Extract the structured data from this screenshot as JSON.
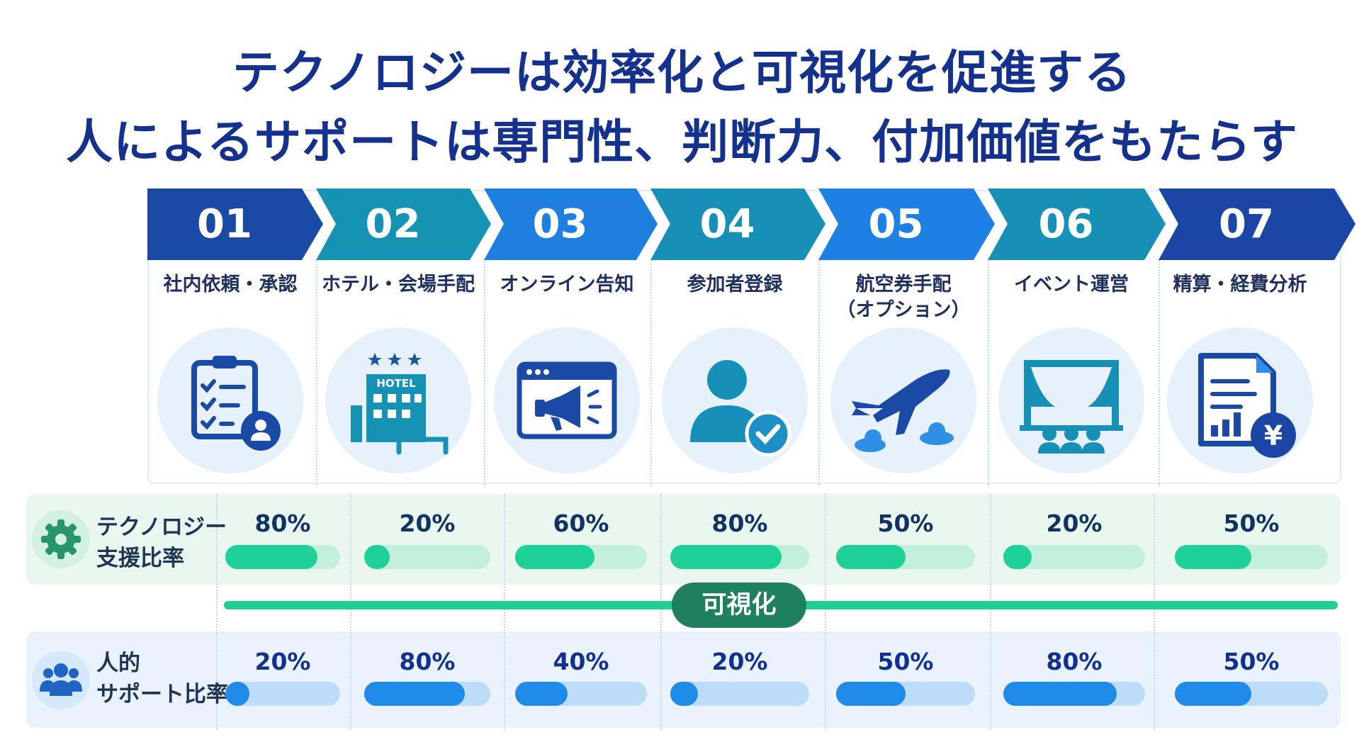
{
  "title": {
    "line1": "テクノロジーは効率化と可視化を促進する",
    "line2": "人によるサポートは専門性、判断力、付加価値をもたらす"
  },
  "steps": [
    {
      "num": "01",
      "label": "社内依頼・承認",
      "icon": "clipboard-checklist-person-icon",
      "color": "#1b4aa6"
    },
    {
      "num": "02",
      "label": "ホテル・会場手配",
      "icon": "hotel-building-bed-icon",
      "color": "#1693b4",
      "icon_text": "HOTEL"
    },
    {
      "num": "03",
      "label": "オンライン告知",
      "icon": "browser-megaphone-icon",
      "color": "#1e7fe0"
    },
    {
      "num": "04",
      "label": "参加者登録",
      "icon": "user-check-icon",
      "color": "#1690b6"
    },
    {
      "num": "05",
      "label": "航空券手配\n（オプション）",
      "icon": "airplane-clouds-icon",
      "color": "#1e80e3"
    },
    {
      "num": "06",
      "label": "イベント運営",
      "icon": "stage-audience-icon",
      "color": "#1690b4"
    },
    {
      "num": "07",
      "label": "精算・経費分析",
      "icon": "report-yen-icon",
      "color": "#1b46a6",
      "icon_text": "¥"
    }
  ],
  "technology": {
    "label": "テクノロジー\n支援比率",
    "icon": "gear-icon",
    "values": [
      80,
      20,
      60,
      80,
      50,
      20,
      50
    ],
    "labels": [
      "80%",
      "20%",
      "60%",
      "80%",
      "50%",
      "20%",
      "50%"
    ]
  },
  "visualization_label": "可視化",
  "human": {
    "label": "人的\nサポート比率",
    "icon": "people-group-icon",
    "values": [
      20,
      80,
      40,
      20,
      50,
      80,
      50
    ],
    "labels": [
      "20%",
      "80%",
      "40%",
      "20%",
      "50%",
      "80%",
      "50%"
    ]
  },
  "colors": {
    "title": "#15318e",
    "tech_bar": "#1ed196",
    "human_bar": "#1f8ae8",
    "viz_line": "#22cf93",
    "viz_pill": "#1f7f5f"
  }
}
